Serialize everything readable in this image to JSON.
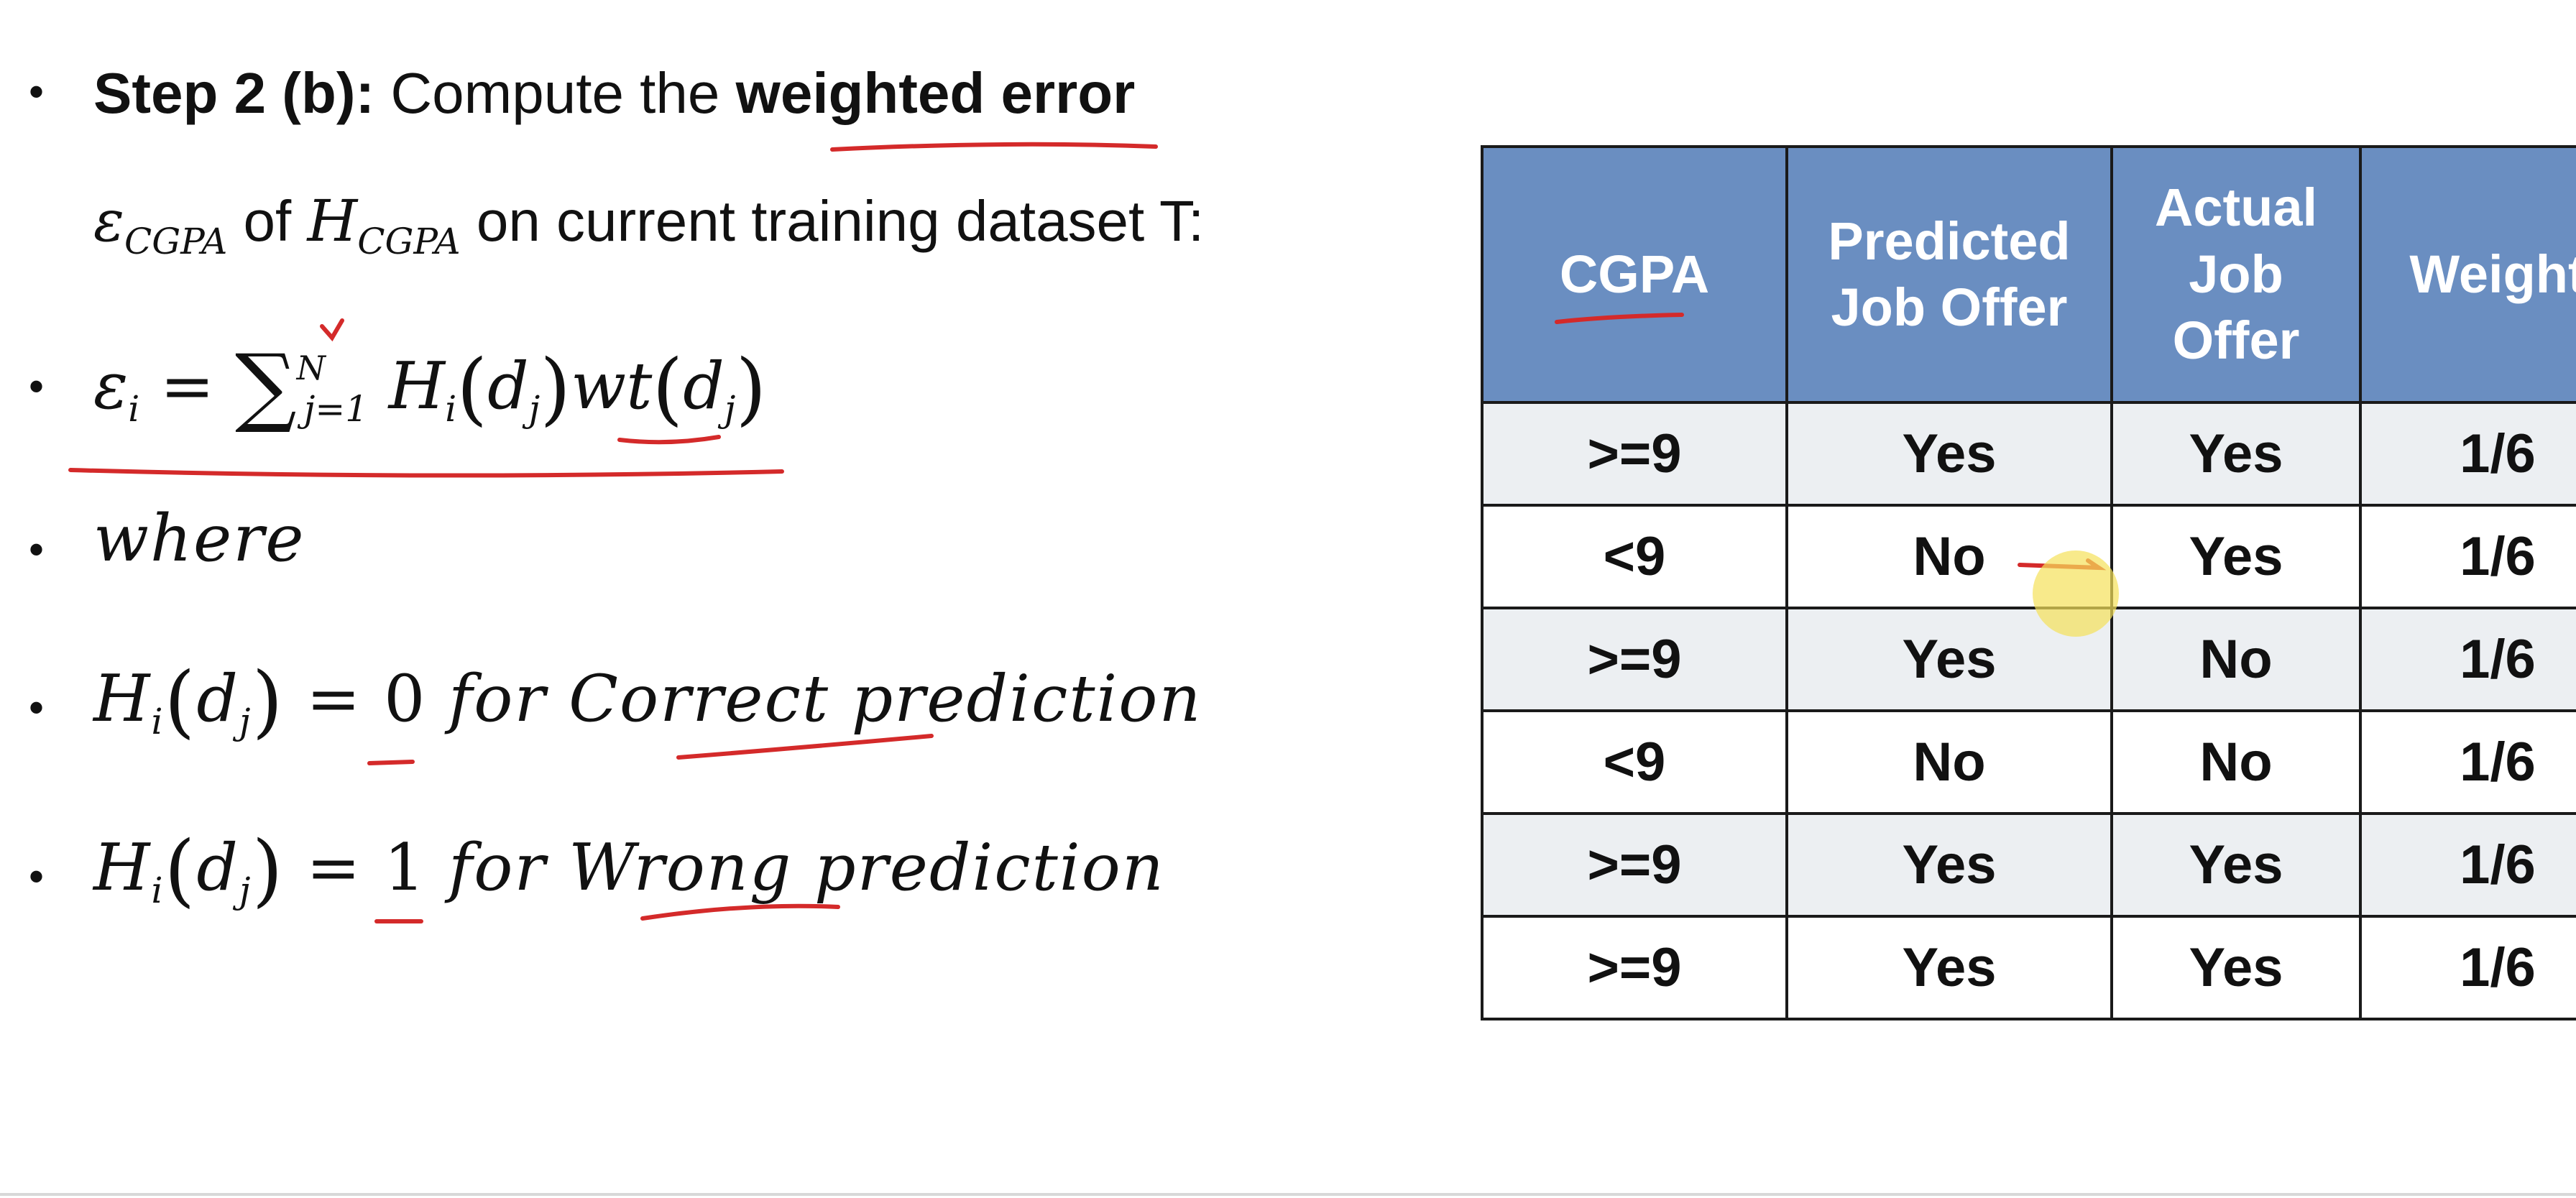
{
  "slide": {
    "step_bullet": {
      "label": "Step 2 (b):",
      "text_before": " Compute the ",
      "highlight": "weighted error"
    },
    "continuation": {
      "eps": "ε",
      "eps_sub": "CGPA",
      "of": " of ",
      "h": "H",
      "h_sub": "CGPA",
      "rest": " on current training dataset T:"
    },
    "formula": {
      "lhs": "ε",
      "lhs_sub": "i",
      "equals": " = ",
      "sum": "∑",
      "sum_sup": "N",
      "sum_sub": "j=1",
      "h": " H",
      "h_sub": "i",
      "d": "d",
      "d_sub": "j",
      "wt": "wt",
      "d2": "d",
      "d2_sub": "j"
    },
    "where": "where",
    "correct_line": {
      "h": "H",
      "h_sub": "i",
      "d": "d",
      "d_sub": "j",
      "value": "0",
      "text": " for Correct prediction"
    },
    "wrong_line": {
      "h": "H",
      "h_sub": "i",
      "d": "d",
      "d_sub": "j",
      "value": "1",
      "text": "  for Wrong prediction"
    }
  },
  "table": {
    "headers": [
      "CGPA",
      "Predicted Job Offer",
      "Actual Job Offer",
      "Weight"
    ],
    "rows": [
      [
        ">=9",
        "Yes",
        "Yes",
        "1/6"
      ],
      [
        "<9",
        "No",
        "Yes",
        "1/6"
      ],
      [
        ">=9",
        "Yes",
        "No",
        "1/6"
      ],
      [
        "<9",
        "No",
        "No",
        "1/6"
      ],
      [
        ">=9",
        "Yes",
        "Yes",
        "1/6"
      ],
      [
        ">=9",
        "Yes",
        "Yes",
        "1/6"
      ]
    ]
  },
  "colors": {
    "header_bg": "#6a8ec1",
    "row_alt_bg": "#eceff2",
    "annotation_red": "#d42a2a",
    "cursor_highlight": "#f5e15a"
  }
}
